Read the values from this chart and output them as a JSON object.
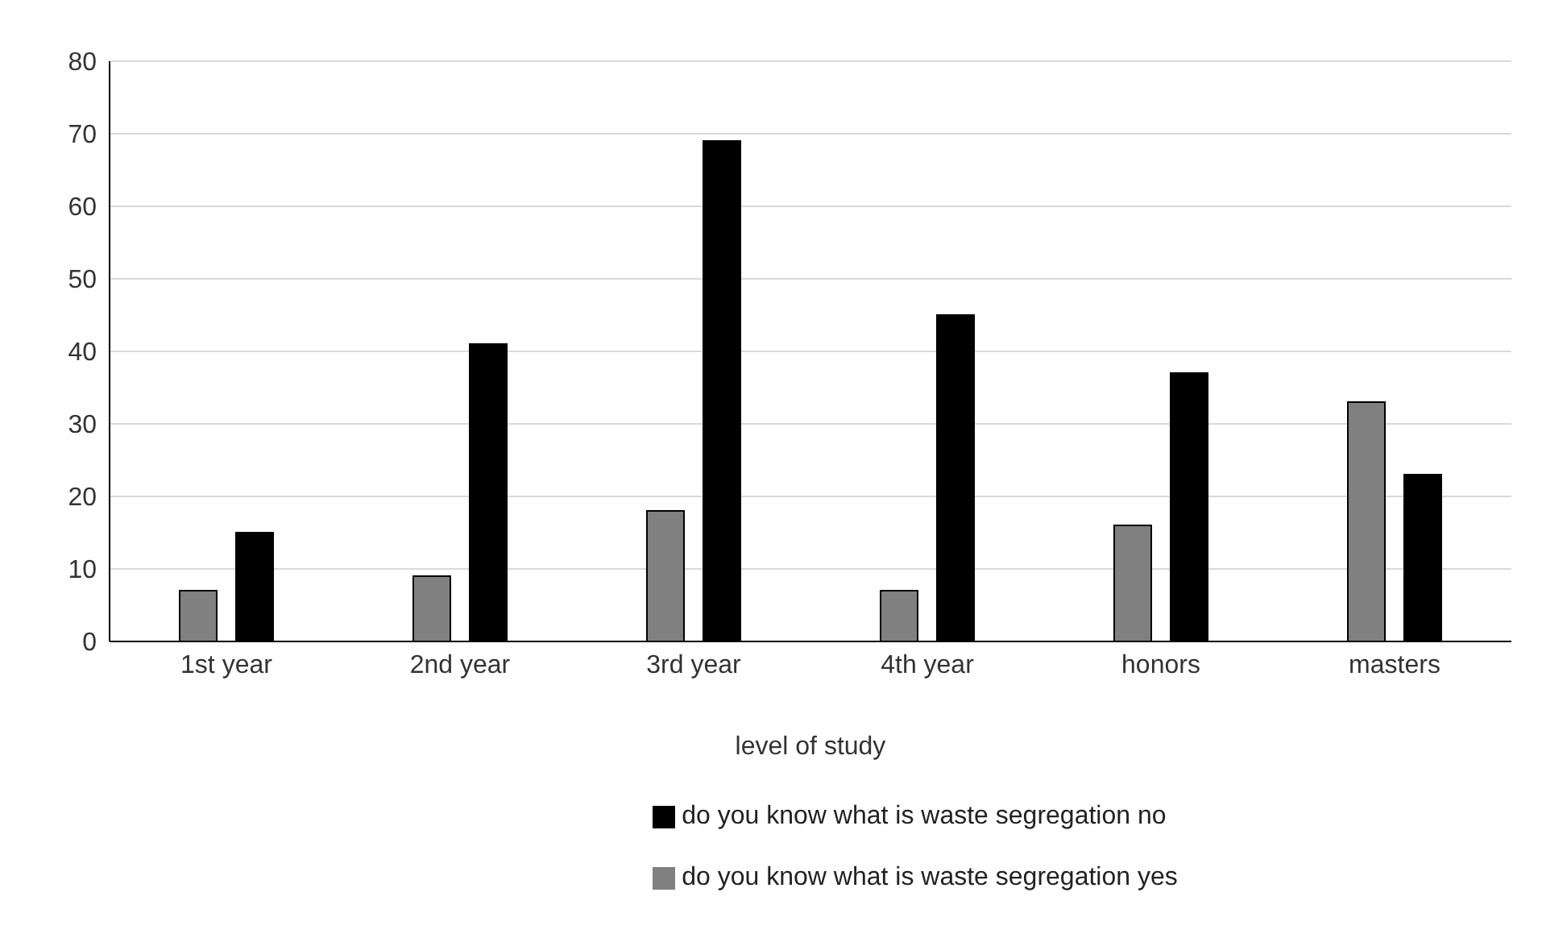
{
  "chart_data": {
    "type": "bar",
    "xlabel": "level of study",
    "categories": [
      "1st year",
      "2nd year",
      "3rd year",
      "4th year",
      "honors",
      "masters"
    ],
    "series": [
      {
        "name": "do you know what is waste segregation yes",
        "color": "#808080",
        "values": [
          7,
          9,
          18,
          7,
          16,
          33
        ]
      },
      {
        "name": "do you know what is waste segregation no",
        "color": "#000000",
        "values": [
          15,
          41,
          69,
          45,
          37,
          23
        ]
      }
    ],
    "ylim": [
      0,
      80
    ],
    "yticks": [
      0,
      10,
      20,
      30,
      40,
      50,
      60,
      70,
      80
    ],
    "grid": "y",
    "legend": "bottom"
  }
}
